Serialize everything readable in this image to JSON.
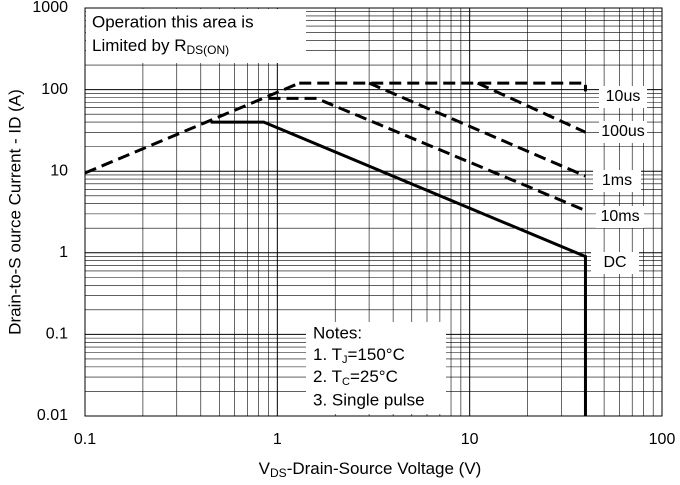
{
  "chart_data": {
    "type": "line",
    "log_x": true,
    "log_y": true,
    "grid": true,
    "color": "#000000",
    "xlabel": {
      "main": "V",
      "sub": "DS",
      "rest": "-Drain-Source Voltage (V)"
    },
    "ylabel": "Drain-to-S ource Current - ID (A)",
    "xlim": [
      0.1,
      100
    ],
    "xticks": [
      0.1,
      1,
      10,
      100
    ],
    "ylim": [
      0.01,
      1000
    ],
    "yticks": [
      0.01,
      0.1,
      1,
      10,
      100,
      1000
    ],
    "limit_note": {
      "line1": "Operation this area is",
      "line2": "Limited  by R",
      "sub": "DS(ON)"
    },
    "notes": {
      "title": "Notes:",
      "n1": {
        "pre": "1. T",
        "sub": "J",
        "post": "=150°C"
      },
      "n2": {
        "pre": "2. T",
        "sub": "C",
        "post": "=25°C"
      },
      "n3": "3. Single pulse"
    },
    "series": [
      {
        "dashed": true,
        "x": [
          0.1,
          1.3
        ],
        "values": [
          9.5,
          120
        ]
      },
      {
        "name": "10us",
        "dashed": true,
        "x": [
          1.3,
          40,
          40
        ],
        "values": [
          120,
          120,
          95
        ]
      },
      {
        "name": "100us",
        "dashed": true,
        "x": [
          11,
          40
        ],
        "values": [
          120,
          30
        ]
      },
      {
        "name": "1ms",
        "dashed": true,
        "x": [
          3,
          40
        ],
        "values": [
          120,
          8.7
        ]
      },
      {
        "name": "10ms",
        "dashed": true,
        "x": [
          0.9,
          1.6,
          40
        ],
        "values": [
          78,
          78,
          3.3
        ]
      },
      {
        "name": "DC",
        "dashed": false,
        "x": [
          0.45,
          0.85,
          40,
          40
        ],
        "values": [
          40,
          40,
          0.9,
          0.01
        ]
      }
    ]
  }
}
